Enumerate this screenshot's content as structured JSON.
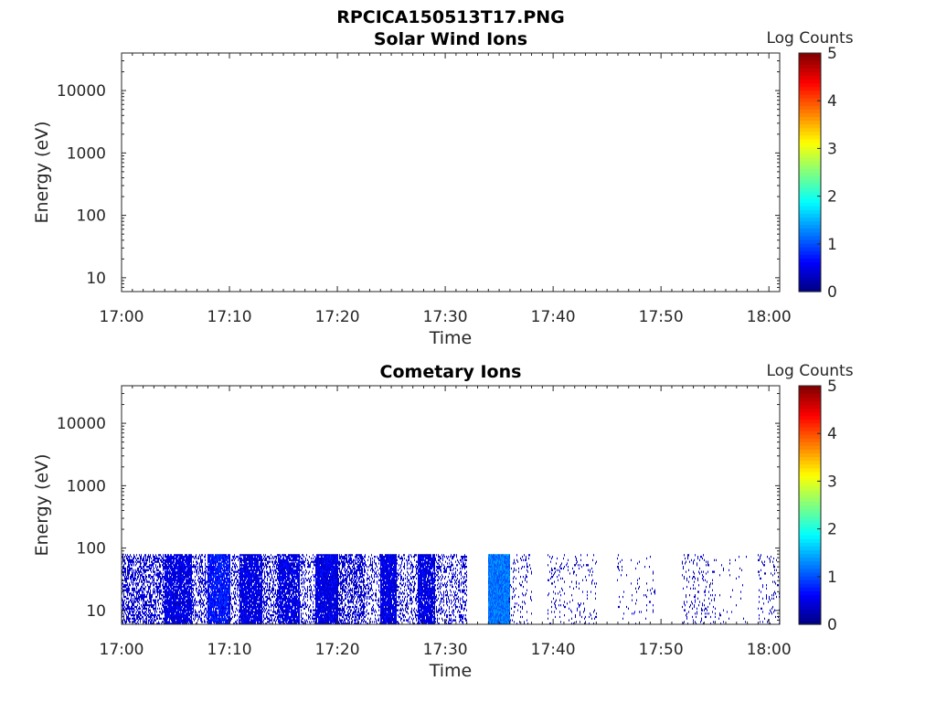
{
  "figure": {
    "title": "RPCICA150513T17.PNG"
  },
  "chart_data": [
    {
      "type": "heatmap",
      "title": "Solar Wind Ions",
      "xlabel": "Time",
      "ylabel": "Energy (eV)",
      "x_ticks": [
        "17:00",
        "17:10",
        "17:20",
        "17:30",
        "17:40",
        "17:50",
        "18:00"
      ],
      "xlim": [
        "17:00",
        "18:01"
      ],
      "y_scale": "log",
      "y_ticks": [
        10,
        100,
        1000,
        10000
      ],
      "y_tick_labels": [
        "10",
        "100",
        "1000",
        "10000"
      ],
      "ylim": [
        6,
        40000
      ],
      "colorbar": {
        "label": "Log Counts",
        "range": [
          0,
          5
        ],
        "ticks": [
          "0",
          "1",
          "2",
          "3",
          "4",
          "5"
        ],
        "colormap": "jet"
      },
      "segments": []
    },
    {
      "type": "heatmap",
      "title": "Cometary Ions",
      "xlabel": "Time",
      "ylabel": "Energy (eV)",
      "x_ticks": [
        "17:00",
        "17:10",
        "17:20",
        "17:30",
        "17:40",
        "17:50",
        "18:00"
      ],
      "xlim": [
        "17:00",
        "18:01"
      ],
      "y_scale": "log",
      "y_ticks": [
        10,
        100,
        1000,
        10000
      ],
      "y_tick_labels": [
        "10",
        "100",
        "1000",
        "10000"
      ],
      "ylim": [
        6,
        40000
      ],
      "colorbar": {
        "label": "Log Counts",
        "range": [
          0,
          5
        ],
        "ticks": [
          "0",
          "1",
          "2",
          "3",
          "4",
          "5"
        ],
        "colormap": "jet"
      },
      "energy_range_eV": [
        6,
        80
      ],
      "segments": [
        {
          "start": "17:00:00",
          "end": "17:04:00",
          "density": 0.5,
          "log_counts": 0.4
        },
        {
          "start": "17:04:00",
          "end": "17:06:30",
          "density": 0.9,
          "log_counts": 0.5
        },
        {
          "start": "17:06:30",
          "end": "17:08:00",
          "density": 0.35,
          "log_counts": 0.4
        },
        {
          "start": "17:08:00",
          "end": "17:10:00",
          "density": 0.9,
          "log_counts": 0.7
        },
        {
          "start": "17:10:00",
          "end": "17:11:00",
          "density": 0.3,
          "log_counts": 0.4
        },
        {
          "start": "17:11:00",
          "end": "17:13:00",
          "density": 0.9,
          "log_counts": 0.5
        },
        {
          "start": "17:13:00",
          "end": "17:14:30",
          "density": 0.4,
          "log_counts": 0.4
        },
        {
          "start": "17:14:30",
          "end": "17:16:30",
          "density": 0.85,
          "log_counts": 0.5
        },
        {
          "start": "17:16:30",
          "end": "17:18:00",
          "density": 0.3,
          "log_counts": 0.4
        },
        {
          "start": "17:18:00",
          "end": "17:20:00",
          "density": 0.95,
          "log_counts": 0.5
        },
        {
          "start": "17:20:00",
          "end": "17:22:30",
          "density": 0.55,
          "log_counts": 0.4
        },
        {
          "start": "17:22:30",
          "end": "17:24:00",
          "density": 0.25,
          "log_counts": 0.4
        },
        {
          "start": "17:24:00",
          "end": "17:25:30",
          "density": 0.95,
          "log_counts": 0.5
        },
        {
          "start": "17:25:30",
          "end": "17:27:30",
          "density": 0.3,
          "log_counts": 0.4
        },
        {
          "start": "17:27:30",
          "end": "17:29:00",
          "density": 0.9,
          "log_counts": 0.5
        },
        {
          "start": "17:29:00",
          "end": "17:32:00",
          "density": 0.3,
          "log_counts": 0.4
        },
        {
          "start": "17:34:00",
          "end": "17:36:00",
          "density": 1.0,
          "log_counts": 1.2
        },
        {
          "start": "17:36:00",
          "end": "17:38:00",
          "density": 0.1,
          "log_counts": 0.3
        },
        {
          "start": "17:39:30",
          "end": "17:44:00",
          "density": 0.08,
          "log_counts": 0.3
        },
        {
          "start": "17:46:00",
          "end": "17:49:30",
          "density": 0.03,
          "log_counts": 0.3
        },
        {
          "start": "17:52:00",
          "end": "17:55:00",
          "density": 0.1,
          "log_counts": 0.3
        },
        {
          "start": "17:55:00",
          "end": "17:58:00",
          "density": 0.03,
          "log_counts": 0.3
        },
        {
          "start": "17:59:00",
          "end": "18:01:00",
          "density": 0.08,
          "log_counts": 0.3
        }
      ]
    }
  ]
}
